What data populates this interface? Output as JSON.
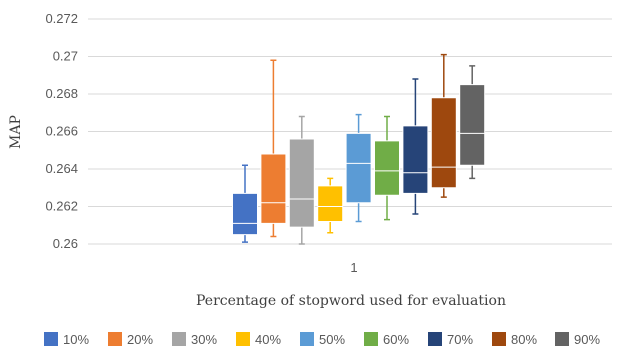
{
  "chart_data": {
    "type": "boxplot",
    "title": "",
    "xlabel": "Percentage of stopword used for evaluation",
    "ylabel": "MAP",
    "categories": [
      "1"
    ],
    "ylim": [
      0.26,
      0.272
    ],
    "yticks": [
      "0.26",
      "0.262",
      "0.264",
      "0.266",
      "0.268",
      "0.27",
      "0.272"
    ],
    "grid": true,
    "legend_position": "bottom",
    "series": [
      {
        "name": "10%",
        "color": "#4472C4",
        "min": 0.2601,
        "q1": 0.2605,
        "median": 0.2611,
        "q3": 0.2627,
        "max": 0.2642
      },
      {
        "name": "20%",
        "color": "#ED7D31",
        "min": 0.2604,
        "q1": 0.2611,
        "median": 0.2622,
        "q3": 0.2648,
        "max": 0.2698
      },
      {
        "name": "30%",
        "color": "#A5A5A5",
        "min": 0.26,
        "q1": 0.2609,
        "median": 0.2624,
        "q3": 0.2656,
        "max": 0.2668
      },
      {
        "name": "40%",
        "color": "#FFC000",
        "min": 0.2606,
        "q1": 0.2612,
        "median": 0.262,
        "q3": 0.2631,
        "max": 0.2635
      },
      {
        "name": "50%",
        "color": "#5B9BD5",
        "min": 0.2612,
        "q1": 0.2622,
        "median": 0.2643,
        "q3": 0.2659,
        "max": 0.2669
      },
      {
        "name": "60%",
        "color": "#70AD47",
        "min": 0.2613,
        "q1": 0.2626,
        "median": 0.2639,
        "q3": 0.2655,
        "max": 0.2668
      },
      {
        "name": "70%",
        "color": "#264478",
        "min": 0.2616,
        "q1": 0.2627,
        "median": 0.2638,
        "q3": 0.2663,
        "max": 0.2688
      },
      {
        "name": "80%",
        "color": "#9E480E",
        "min": 0.2625,
        "q1": 0.263,
        "median": 0.2641,
        "q3": 0.2678,
        "max": 0.2701
      },
      {
        "name": "90%",
        "color": "#636363",
        "min": 0.2635,
        "q1": 0.2642,
        "median": 0.2659,
        "q3": 0.2685,
        "max": 0.2695
      }
    ]
  }
}
